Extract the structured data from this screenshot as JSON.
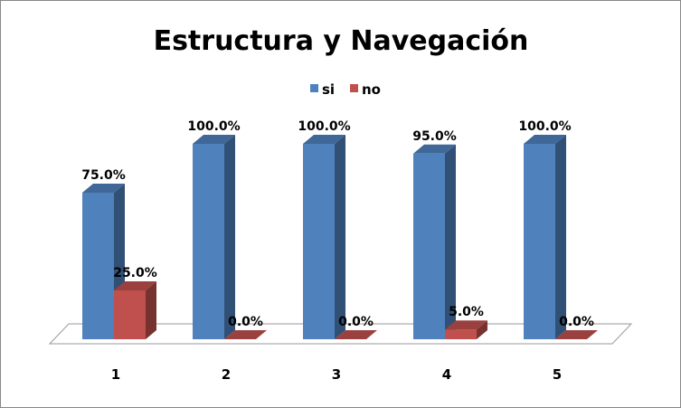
{
  "chart_data": {
    "type": "bar",
    "title": "Estructura y Navegación",
    "categories": [
      "1",
      "2",
      "3",
      "4",
      "5"
    ],
    "series": [
      {
        "name": "si",
        "color": "#4F81BD",
        "values": [
          75.0,
          100.0,
          100.0,
          95.0,
          100.0
        ]
      },
      {
        "name": "no",
        "color": "#C0504D",
        "values": [
          25.0,
          0.0,
          0.0,
          5.0,
          0.0
        ]
      }
    ],
    "data_labels": [
      [
        "75.0%",
        "100.0%",
        "100.0%",
        "95.0%",
        "100.0%"
      ],
      [
        "25.0%",
        "0.0%",
        "0.0%",
        "5.0%",
        "0.0%"
      ]
    ],
    "ylim": [
      0,
      100
    ],
    "grid": false,
    "legend_position": "top",
    "style": "3d-column"
  }
}
